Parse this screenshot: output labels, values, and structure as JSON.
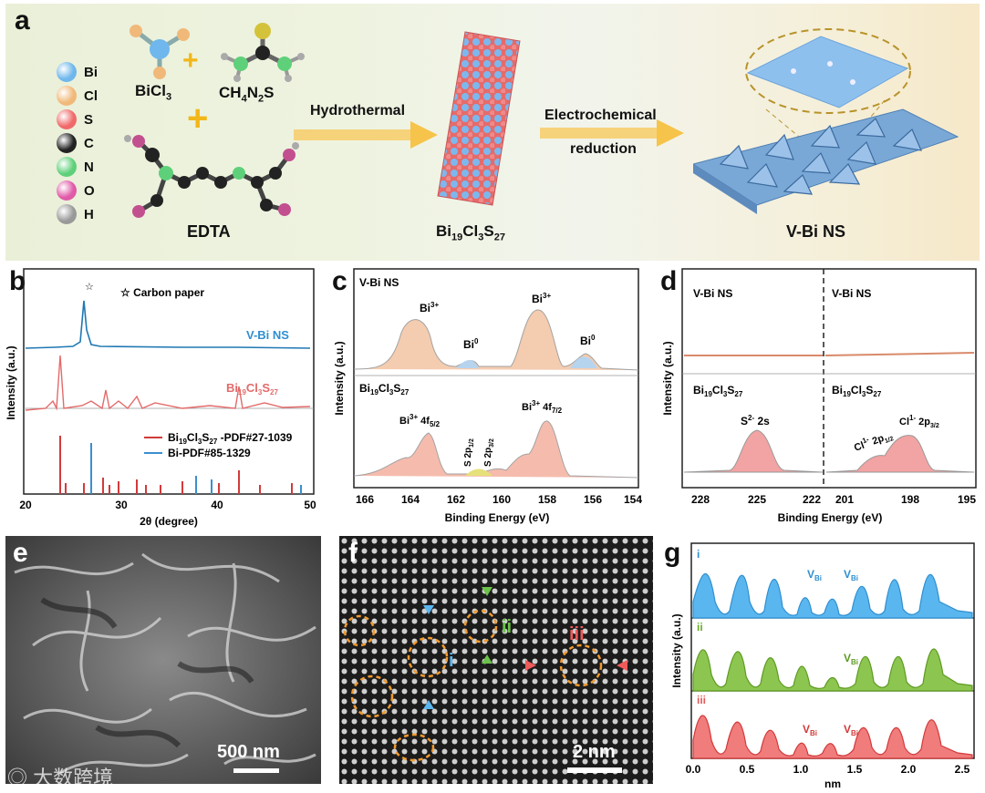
{
  "panel_labels": [
    "a",
    "b",
    "c",
    "d",
    "e",
    "f",
    "g"
  ],
  "scheme": {
    "legend": [
      {
        "label": "Bi",
        "color": "#6fb7ec"
      },
      {
        "label": "Cl",
        "color": "#f0b97a"
      },
      {
        "label": "S",
        "color": "#f06a6a"
      },
      {
        "label": "C",
        "color": "#222222"
      },
      {
        "label": "N",
        "color": "#5fd07a"
      },
      {
        "label": "O",
        "color": "#e05aa8"
      },
      {
        "label": "H",
        "color": "#999999"
      }
    ],
    "bicl3": "BiCl",
    "bicl3_sub": "3",
    "ch4n2s_parts": [
      "CH",
      "4",
      "N",
      "2",
      "S"
    ],
    "edta": "EDTA",
    "arrow1": "Hydrothermal",
    "arrow2_line1": "Electrochemical",
    "arrow2_line2": "reduction",
    "product1_parts": [
      "Bi",
      "19",
      "Cl",
      "3",
      "S",
      "27"
    ],
    "product2": "V-Bi NS"
  },
  "panel_b": {
    "star_note": "☆ Carbon paper",
    "label_vbi": "V-Bi NS",
    "label_bicls": [
      "Bi",
      "19",
      "Cl",
      "3",
      "S",
      "27"
    ],
    "legend1": [
      "Bi",
      "19",
      "Cl",
      "3",
      "S",
      "27",
      " -PDF#27-1039"
    ],
    "legend2": "Bi-PDF#85-1329",
    "ylabel": "Intensity (a.u.)",
    "xlabel": "2θ (degree)",
    "xticks": [
      "20",
      "30",
      "40",
      "50"
    ]
  },
  "panel_c": {
    "top_label": "V-Bi NS",
    "bottom_label": [
      "Bi",
      "19",
      "Cl",
      "3",
      "S",
      "27"
    ],
    "peaks_top": [
      "Bi3+",
      "Bi0",
      "Bi3+",
      "Bi0"
    ],
    "peaks_bottom": [
      "Bi3+ 4f5/2",
      "S 2p1/2",
      "S 2p3/2",
      "Bi3+ 4f7/2"
    ],
    "ylabel": "Intensity (a.u.)",
    "xlabel": "Binding Energy (eV)",
    "xticks": [
      "166",
      "164",
      "162",
      "160",
      "158",
      "156",
      "154"
    ]
  },
  "panel_d": {
    "left_top": "V-Bi NS",
    "right_top": "V-Bi NS",
    "left_bottom": [
      "Bi",
      "19",
      "Cl",
      "3",
      "S",
      "27"
    ],
    "right_bottom": [
      "Bi",
      "19",
      "Cl",
      "3",
      "S",
      "27"
    ],
    "peak_s": "S2- 2s",
    "peak_cl1": "Cl1- 2p1/2",
    "peak_cl2": "Cl1- 2p3/2",
    "ylabel": "Intensity (a.u.)",
    "xlabel": "Binding Energy (eV)",
    "xticks_left": [
      "228",
      "225",
      "222"
    ],
    "xticks_right": [
      "201",
      "198",
      "195"
    ]
  },
  "panel_e": {
    "scale": "500 nm",
    "watermark": "大数跨境"
  },
  "panel_f": {
    "scale": "2 nm",
    "marks": [
      "i",
      "ii",
      "iii"
    ]
  },
  "panel_g": {
    "traces": [
      {
        "name": "i",
        "color": "#3aa7e6",
        "vlabels": [
          "VBi",
          "VBi"
        ]
      },
      {
        "name": "ii",
        "color": "#6aaa2a",
        "vlabels": [
          "VBi"
        ]
      },
      {
        "name": "iii",
        "color": "#e35b5b",
        "vlabels": [
          "VBi",
          "VBi"
        ]
      }
    ],
    "ylabel": "Intensity (a.u.)",
    "xlabel": "nm",
    "xticks": [
      "0.0",
      "0.5",
      "1.0",
      "1.5",
      "2.0",
      "2.5"
    ]
  }
}
